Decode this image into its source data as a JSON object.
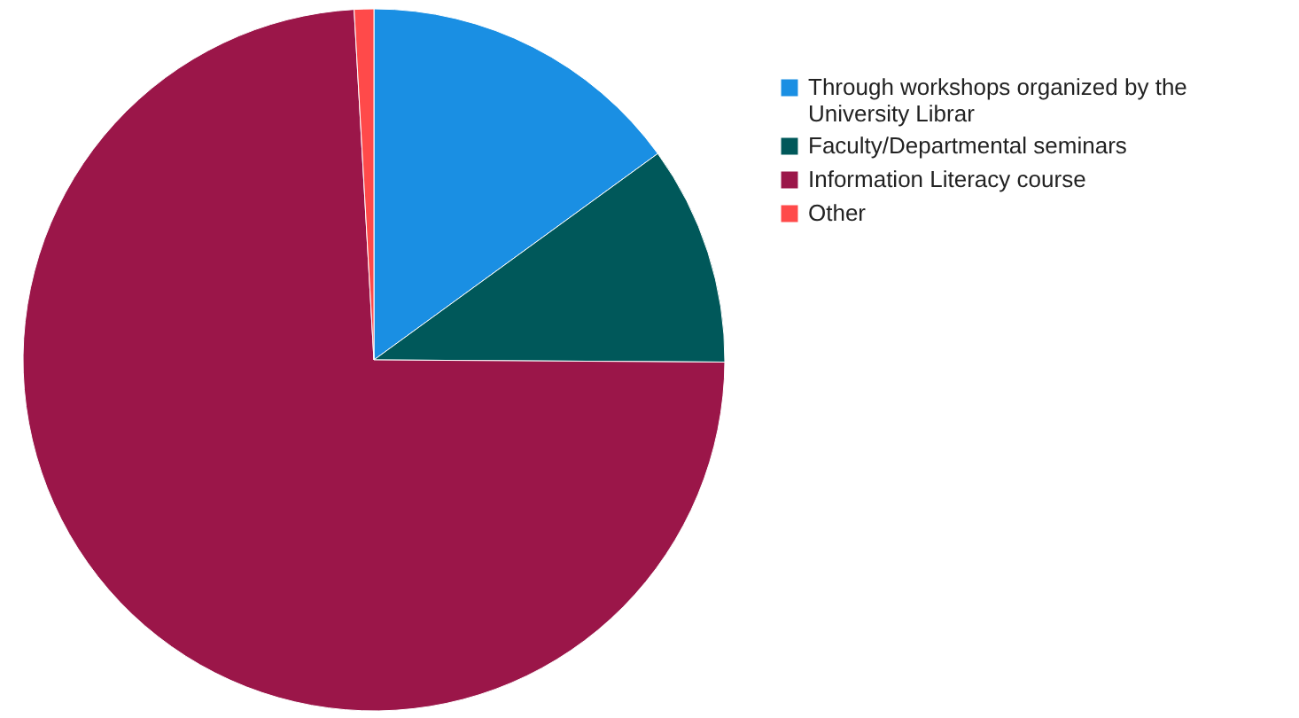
{
  "chart_data": {
    "type": "pie",
    "categories": [
      "Through workshops organized by the University Librar",
      "Faculty/Departmental seminars",
      "Information Literacy course",
      "Other"
    ],
    "values": [
      15,
      10.1,
      74,
      0.9
    ],
    "colors": [
      "#1a8fe3",
      "#00585a",
      "#9b1649",
      "#ff4a4a"
    ],
    "legend": "right"
  }
}
